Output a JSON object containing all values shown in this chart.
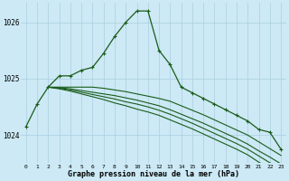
{
  "background_color": "#cce9f5",
  "grid_color": "#aacfe0",
  "line_color": "#1a5c1a",
  "xlabel": "Graphe pression niveau de la mer (hPa)",
  "ylim": [
    1023.5,
    1026.35
  ],
  "xlim": [
    -0.5,
    23.5
  ],
  "yticks": [
    1024,
    1025,
    1026
  ],
  "xticks": [
    0,
    1,
    2,
    3,
    4,
    5,
    6,
    7,
    8,
    9,
    10,
    11,
    12,
    13,
    14,
    15,
    16,
    17,
    18,
    19,
    20,
    21,
    22,
    23
  ],
  "series": [
    {
      "x": [
        0,
        1,
        2,
        3,
        4,
        5,
        6,
        7,
        8,
        9,
        10,
        11,
        12,
        13,
        14,
        15,
        16,
        17,
        18,
        19,
        20,
        21,
        22,
        23
      ],
      "y": [
        1024.15,
        1024.55,
        1024.85,
        1025.05,
        1025.05,
        1025.15,
        1025.2,
        1025.45,
        1025.75,
        1026.0,
        1026.2,
        1026.2,
        1025.5,
        1025.25,
        1024.85,
        1024.75,
        1024.65,
        1024.55,
        1024.45,
        1024.35,
        1024.25,
        1024.1,
        1024.05,
        1023.75
      ],
      "markers": true
    },
    {
      "x": [
        2,
        3,
        4,
        5,
        6,
        7,
        8,
        9,
        10,
        11,
        12,
        13,
        14,
        15,
        16,
        17,
        18,
        19,
        20,
        21,
        22,
        23
      ],
      "y": [
        1024.85,
        1024.85,
        1024.85,
        1024.85,
        1024.85,
        1024.85,
        1024.85,
        1024.85,
        1024.85,
        1024.85,
        1024.85,
        1024.7,
        1024.55,
        1024.45,
        1024.35,
        1024.25,
        1024.15,
        1024.05,
        1023.95,
        1023.82,
        1023.7,
        1023.6
      ],
      "markers": false
    },
    {
      "x": [
        2,
        3,
        4,
        5,
        6,
        7,
        8,
        9,
        10,
        11,
        12,
        13,
        14,
        15,
        16,
        17,
        18,
        19,
        20,
        21,
        22,
        23
      ],
      "y": [
        1024.85,
        1024.85,
        1024.85,
        1024.85,
        1024.83,
        1024.8,
        1024.77,
        1024.74,
        1024.72,
        1024.7,
        1024.67,
        1024.55,
        1024.42,
        1024.32,
        1024.22,
        1024.12,
        1024.02,
        1023.92,
        1023.82,
        1023.7,
        1023.58,
        1023.45
      ],
      "markers": false
    },
    {
      "x": [
        2,
        3,
        4,
        5,
        6,
        7,
        8,
        9,
        10,
        11,
        12,
        13,
        14,
        15,
        16,
        17,
        18,
        19,
        20,
        21,
        22,
        23
      ],
      "y": [
        1024.85,
        1024.85,
        1024.84,
        1024.82,
        1024.79,
        1024.76,
        1024.73,
        1024.7,
        1024.67,
        1024.64,
        1024.6,
        1024.47,
        1024.35,
        1024.24,
        1024.13,
        1024.02,
        1023.91,
        1023.8,
        1023.69,
        1023.57,
        1023.45,
        1023.33
      ],
      "markers": false
    },
    {
      "x": [
        1,
        2,
        3
      ],
      "y": [
        1024.7,
        1024.85,
        1024.85
      ],
      "markers": true
    },
    {
      "x": [
        3,
        4,
        5,
        6
      ],
      "y": [
        1024.85,
        1025.05,
        1025.1,
        1025.15
      ],
      "markers": true
    }
  ],
  "series2": [
    [
      1024.85,
      1024.85,
      1024.85,
      1024.85,
      1024.85,
      1024.83,
      1024.8,
      1024.77,
      1024.73,
      1024.69,
      1024.65,
      1024.6,
      1024.52,
      1024.44,
      1024.36,
      1024.27,
      1024.18,
      1024.09,
      1024.0,
      1023.88,
      1023.76,
      1023.64
    ],
    [
      1024.85,
      1024.84,
      1024.82,
      1024.79,
      1024.76,
      1024.73,
      1024.7,
      1024.66,
      1024.62,
      1024.57,
      1024.52,
      1024.45,
      1024.37,
      1024.29,
      1024.21,
      1024.12,
      1024.03,
      1023.94,
      1023.84,
      1023.72,
      1023.61,
      1023.49
    ],
    [
      1024.85,
      1024.83,
      1024.8,
      1024.76,
      1024.72,
      1024.68,
      1024.64,
      1024.59,
      1024.55,
      1024.5,
      1024.44,
      1024.37,
      1024.29,
      1024.21,
      1024.12,
      1024.03,
      1023.94,
      1023.85,
      1023.75,
      1023.63,
      1023.51,
      1023.39
    ],
    [
      1024.85,
      1024.82,
      1024.78,
      1024.73,
      1024.68,
      1024.63,
      1024.57,
      1024.52,
      1024.46,
      1024.41,
      1024.35,
      1024.27,
      1024.19,
      1024.11,
      1024.02,
      1023.93,
      1023.84,
      1023.75,
      1023.65,
      1023.52,
      1023.4,
      1023.28
    ]
  ]
}
